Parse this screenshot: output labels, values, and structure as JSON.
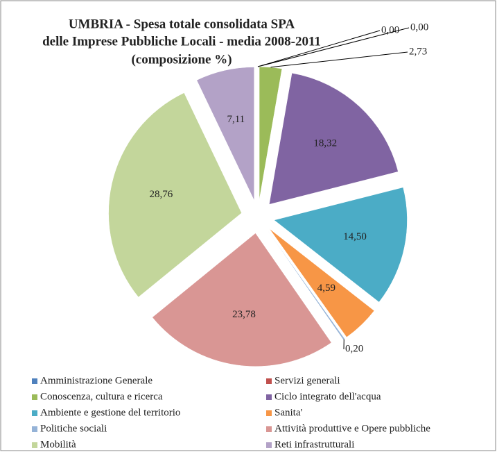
{
  "chart_data": {
    "type": "pie",
    "title": [
      "UMBRIA - Spesa totale consolidata SPA",
      "delle Imprese Pubbliche Locali - media 2008-2011",
      "(composizione %)"
    ],
    "categories": [
      "Amministrazione Generale",
      "Servizi generali",
      "Conoscenza, cultura e ricerca",
      "Ciclo integrato dell'acqua",
      "Ambiente e gestione del territorio",
      "Sanita'",
      "Politiche sociali",
      "Attività produttive e Opere pubbliche",
      "Mobilità",
      "Reti infrastrutturali"
    ],
    "values": [
      0.0,
      0.0,
      2.73,
      18.32,
      14.5,
      4.59,
      0.2,
      23.78,
      28.76,
      7.11
    ],
    "value_labels": [
      "0,00",
      "0,00",
      "2,73",
      "18,32",
      "14,50",
      "4,59",
      "0,20",
      "23,78",
      "28,76",
      "7,11"
    ],
    "colors": [
      "#4f81bd",
      "#c0504d",
      "#9bbb59",
      "#8064a2",
      "#4bacc6",
      "#f79646",
      "#95b3d7",
      "#d99694",
      "#c3d69b",
      "#b3a2c7"
    ],
    "legend": "bottom"
  }
}
